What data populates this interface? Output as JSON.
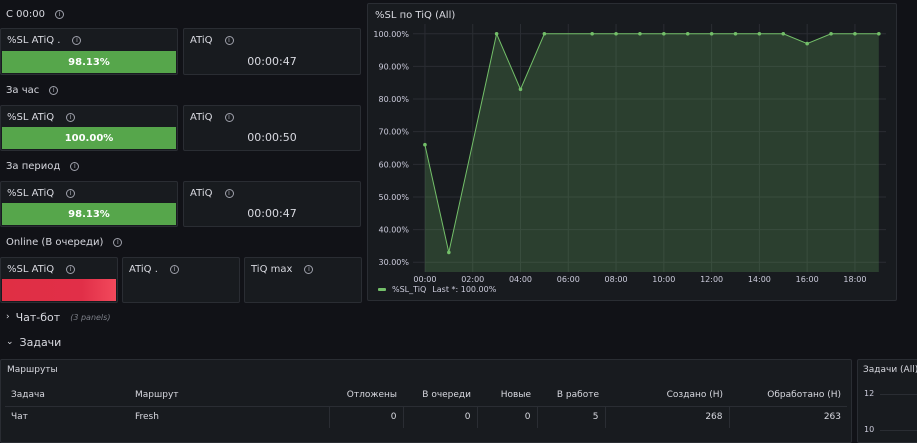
{
  "sections": [
    {
      "title": "С 00:00",
      "sl": {
        "label": "%SL ATiQ .",
        "value": "98.13%"
      },
      "atiq": {
        "label": "ATiQ",
        "value": "00:00:47"
      }
    },
    {
      "title": "За час",
      "sl": {
        "label": "%SL ATiQ",
        "value": "100.00%"
      },
      "atiq": {
        "label": "ATiQ",
        "value": "00:00:50"
      }
    },
    {
      "title": "За период",
      "sl": {
        "label": "%SL ATiQ",
        "value": "98.13%"
      },
      "atiq": {
        "label": "ATiQ",
        "value": "00:00:47"
      }
    }
  ],
  "online": {
    "title": "Online (В очереди)",
    "sl_label": "%SL ATiQ",
    "atiq_label": "ATiQ .",
    "tiq_label": "TiQ max"
  },
  "chart": {
    "title": "%SL по TiQ (All)",
    "legend_label": "%SL_TiQ",
    "legend_last": "Last *: 100.00%",
    "color": "#73bf69"
  },
  "chart_data": {
    "type": "area",
    "title": "%SL по TiQ (All)",
    "xlabel": "",
    "ylabel": "",
    "x_ticks": [
      "00:00",
      "02:00",
      "04:00",
      "06:00",
      "08:00",
      "10:00",
      "12:00",
      "14:00",
      "16:00",
      "18:00"
    ],
    "y_ticks": [
      "30.00%",
      "40.00%",
      "50.00%",
      "60.00%",
      "70.00%",
      "80.00%",
      "90.00%",
      "100.00%"
    ],
    "ylim": [
      27,
      103
    ],
    "xlim": [
      -0.5,
      19.3
    ],
    "grid": true,
    "series": [
      {
        "name": "%SL_TiQ",
        "x": [
          0,
          1,
          3,
          4,
          5,
          7,
          8,
          9,
          10,
          11,
          12,
          13,
          14,
          15,
          16,
          17,
          18,
          19
        ],
        "values": [
          66,
          33,
          100,
          83,
          100,
          100,
          100,
          100,
          100,
          100,
          100,
          100,
          100,
          100,
          97,
          100,
          100,
          100
        ]
      }
    ]
  },
  "chatbot_row": {
    "label": "Чат-бот",
    "sub": "(3 panels)"
  },
  "tasks_row": {
    "label": "Задачи"
  },
  "routes_table": {
    "title": "Маршруты",
    "columns": [
      "Задача",
      "Маршрут",
      "Отложены",
      "В очереди",
      "Новые",
      "В работе",
      "Создано (Н)",
      "Обработано (Н)"
    ],
    "rows": [
      [
        "Чат",
        "Fresh",
        "0",
        "0",
        "0",
        "5",
        "268",
        "263"
      ]
    ]
  },
  "mini_panel": {
    "title": "Задачи (All)",
    "ticks": [
      "12",
      "10"
    ]
  }
}
